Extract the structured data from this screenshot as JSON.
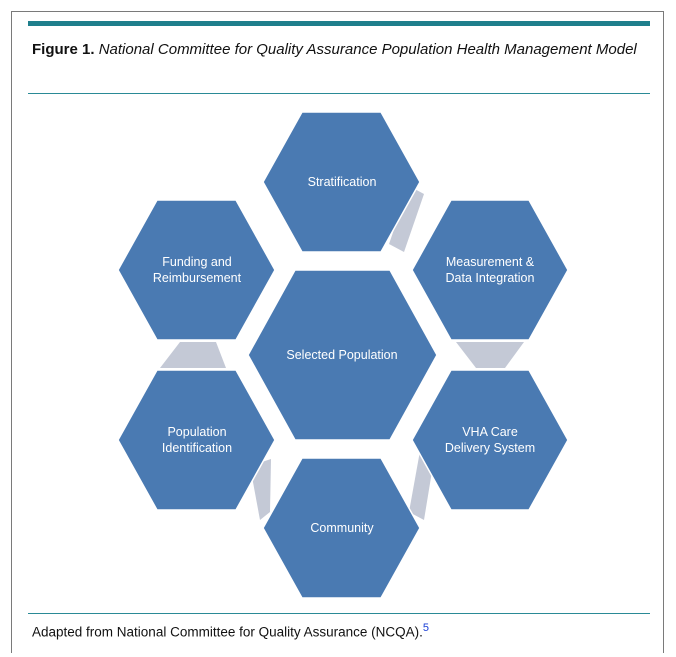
{
  "figure": {
    "label": "Figure 1.",
    "title": "National Committee for Quality Assurance Population Health Management Model"
  },
  "diagram": {
    "center": {
      "label_lines": [
        "Selected Population"
      ]
    },
    "nodes": [
      {
        "id": "stratification",
        "label_lines": [
          "Stratification"
        ]
      },
      {
        "id": "measurement",
        "label_lines": [
          "Measurement &",
          "Data Integration"
        ]
      },
      {
        "id": "vha-care",
        "label_lines": [
          "VHA Care",
          "Delivery System"
        ]
      },
      {
        "id": "community",
        "label_lines": [
          "Community"
        ]
      },
      {
        "id": "population-identification",
        "label_lines": [
          "Population",
          "Identification"
        ]
      },
      {
        "id": "funding",
        "label_lines": [
          "Funding and",
          "Reimbursement"
        ]
      }
    ],
    "colors": {
      "hexagon": "#4a7ab2",
      "connector": "#c4c9d6",
      "accent": "#1f7f8c"
    }
  },
  "source": {
    "text": "Adapted from National Committee for Quality Assurance (NCQA).",
    "ref": "5"
  }
}
